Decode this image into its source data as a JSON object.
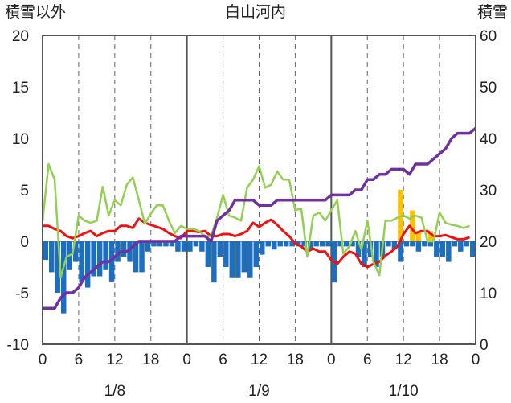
{
  "chart_data": {
    "type": "bar+line",
    "title": "白山河内",
    "left_axis": {
      "label": "積雪以外",
      "ylim": [
        -10,
        20
      ],
      "ticks": [
        "20",
        "15",
        "10",
        "5",
        "0",
        "-5",
        "-10"
      ]
    },
    "right_axis": {
      "label": "積雪",
      "ylim": [
        0,
        60
      ],
      "ticks": [
        "60",
        "50",
        "40",
        "30",
        "20",
        "10",
        "0"
      ]
    },
    "x": {
      "range_hours": [
        0,
        72
      ],
      "tick_labels": [
        "0",
        "6",
        "12",
        "18",
        "0",
        "6",
        "12",
        "18",
        "0",
        "6",
        "12",
        "18",
        "0"
      ],
      "date_labels": [
        "1/8",
        "1/9",
        "1/10"
      ]
    },
    "grid": {
      "vertical_dashed": true,
      "day_separators": "solid"
    },
    "colors": {
      "blue_bars": "#1c6fc0",
      "orange_bars": "#ffc000",
      "red_line": "#ee1111",
      "green_line": "#92d050",
      "purple_line": "#7030a0",
      "axis": "#555555"
    },
    "series": [
      {
        "kind": "bar",
        "axis": "left",
        "color": "#1c6fc0",
        "values": [
          -1.8,
          -3,
          -5,
          -7,
          -2.8,
          -2,
          -4,
          -4.5,
          -3.4,
          -3.4,
          -2.8,
          -3.9,
          -2,
          -1.5,
          -2,
          -3,
          -3,
          -1,
          -0.5,
          -0.5,
          -0.5,
          -0.5,
          -1,
          -1,
          -1,
          -0.5,
          -1,
          -2.5,
          -4,
          -1.5,
          -2.5,
          -3.5,
          -3.5,
          -3,
          -3.5,
          -2.5,
          -1.3,
          -0.5,
          -0.8,
          -0.5,
          -0.5,
          -0.5,
          -0.5,
          -0.5,
          -0.8,
          -0.5,
          -0.5,
          -0.5,
          -4,
          -0.5,
          -0.5,
          -0.5,
          -1.5,
          -2.5,
          -1.5,
          -2.5,
          -1.5,
          -0.5,
          -0.8,
          -2,
          -0.5,
          -0.5,
          -1,
          -0.5,
          -0.5,
          -1.5,
          -1.5,
          -2,
          -0.5,
          -1,
          -0.5,
          -1.5
        ]
      },
      {
        "kind": "bar",
        "axis": "left",
        "color": "#ffc000",
        "values": [
          0,
          0,
          0,
          0,
          0,
          0,
          0,
          0,
          0,
          0,
          0,
          0,
          0,
          0,
          0,
          0,
          0,
          0,
          0,
          0,
          0,
          0,
          0,
          0,
          0,
          0,
          0,
          0,
          0,
          0,
          0,
          0,
          0,
          0,
          0,
          0,
          0,
          0,
          0,
          0,
          0,
          0,
          0,
          0,
          0,
          0,
          0,
          0,
          0,
          0,
          0,
          0,
          0,
          0,
          0,
          0,
          0,
          0,
          0,
          5,
          0,
          3,
          1,
          0,
          1,
          0,
          0,
          0,
          0,
          0,
          0,
          0
        ]
      },
      {
        "kind": "line",
        "axis": "left",
        "color": "#ee1111",
        "values": [
          1.5,
          1.5,
          1.2,
          1,
          0.5,
          0.3,
          0.5,
          0.8,
          1,
          0.5,
          0.8,
          1,
          1,
          1.5,
          1.5,
          1.3,
          2.2,
          1.8,
          1.6,
          1.4,
          1.2,
          0.8,
          0.5,
          0.3,
          1,
          1,
          0.9,
          1,
          0.5,
          0.5,
          0.7,
          0.7,
          0.5,
          0.7,
          1,
          1.8,
          1.4,
          1.8,
          2.1,
          1.6,
          1,
          0.5,
          -0.2,
          -0.5,
          -1,
          -0.7,
          -1,
          -1,
          -1.8,
          -2.2,
          -1.5,
          -1,
          -1.2,
          -2.2,
          -2.5,
          -2.2,
          -2,
          -1.4,
          -1,
          -0.5,
          0.7,
          1.5,
          0.8,
          1,
          1,
          0.5,
          0.5,
          0.6,
          0.4,
          0.2,
          0.2,
          0.4
        ]
      },
      {
        "kind": "line",
        "axis": "left",
        "color": "#92d050",
        "values": [
          2,
          7.5,
          6,
          -3.5,
          -1.5,
          -1.2,
          2.5,
          2,
          1.8,
          2,
          5.3,
          2.5,
          4,
          3.5,
          5.5,
          6.2,
          4,
          1.7,
          2.7,
          3.5,
          3.5,
          2,
          0.8,
          1.5,
          1.2,
          1.2,
          1,
          0.5,
          0.5,
          2.3,
          4.5,
          2.5,
          2.3,
          2,
          5.2,
          6,
          7.3,
          5.2,
          5.5,
          6.8,
          6,
          6,
          3,
          3.2,
          -1.5,
          2.5,
          2.8,
          2,
          3,
          4,
          -1.2,
          -0.5,
          1,
          -0.8,
          2,
          -2,
          -3.3,
          2,
          2,
          2.3,
          2.5,
          2.2,
          2.5,
          2.3,
          0,
          0,
          2.8,
          1.8,
          1.6,
          1.5,
          1.3,
          1.5
        ]
      },
      {
        "kind": "line",
        "axis": "right",
        "color": "#7030a0",
        "values": [
          7,
          7,
          7,
          9,
          10,
          10,
          11,
          13,
          14,
          15,
          16,
          16,
          17,
          18,
          18,
          19,
          20,
          20,
          20,
          20,
          20,
          20,
          20,
          21,
          21,
          21,
          21,
          21,
          20,
          24,
          25,
          26,
          28,
          28,
          28,
          28,
          27,
          27,
          27,
          28,
          28,
          28,
          28,
          28,
          28,
          28,
          28,
          28,
          29,
          29,
          29,
          29,
          30,
          30,
          32,
          32,
          33,
          33,
          34,
          34,
          34,
          33,
          35,
          35,
          35,
          36,
          37,
          38,
          40,
          41,
          41,
          41,
          42
        ]
      }
    ]
  }
}
